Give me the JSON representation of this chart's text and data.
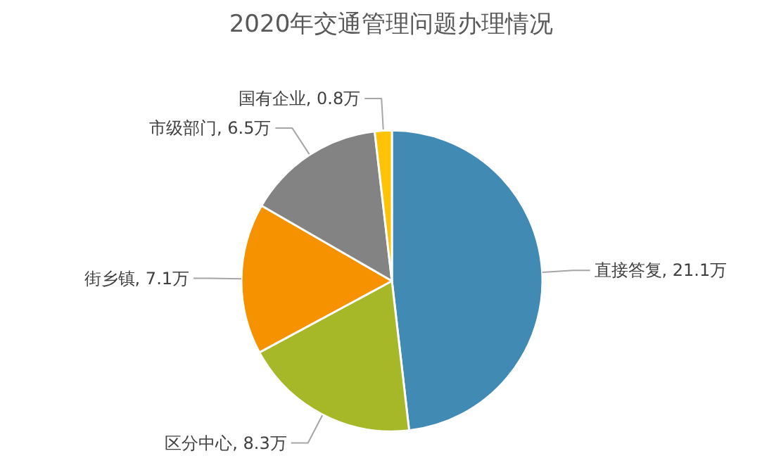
{
  "chart_data": {
    "type": "pie",
    "title": "2020年交通管理问题办理情况",
    "categories": [
      "直接答复",
      "区分中心",
      "街乡镇",
      "市级部门",
      "国有企业"
    ],
    "values": [
      21.1,
      8.3,
      7.1,
      6.5,
      0.8
    ],
    "value_labels": [
      "21.1万",
      "8.3万",
      "7.1万",
      "6.5万",
      "0.8万"
    ],
    "colors": [
      "#418ab3",
      "#a6b727",
      "#f69200",
      "#838383",
      "#fec306"
    ]
  }
}
